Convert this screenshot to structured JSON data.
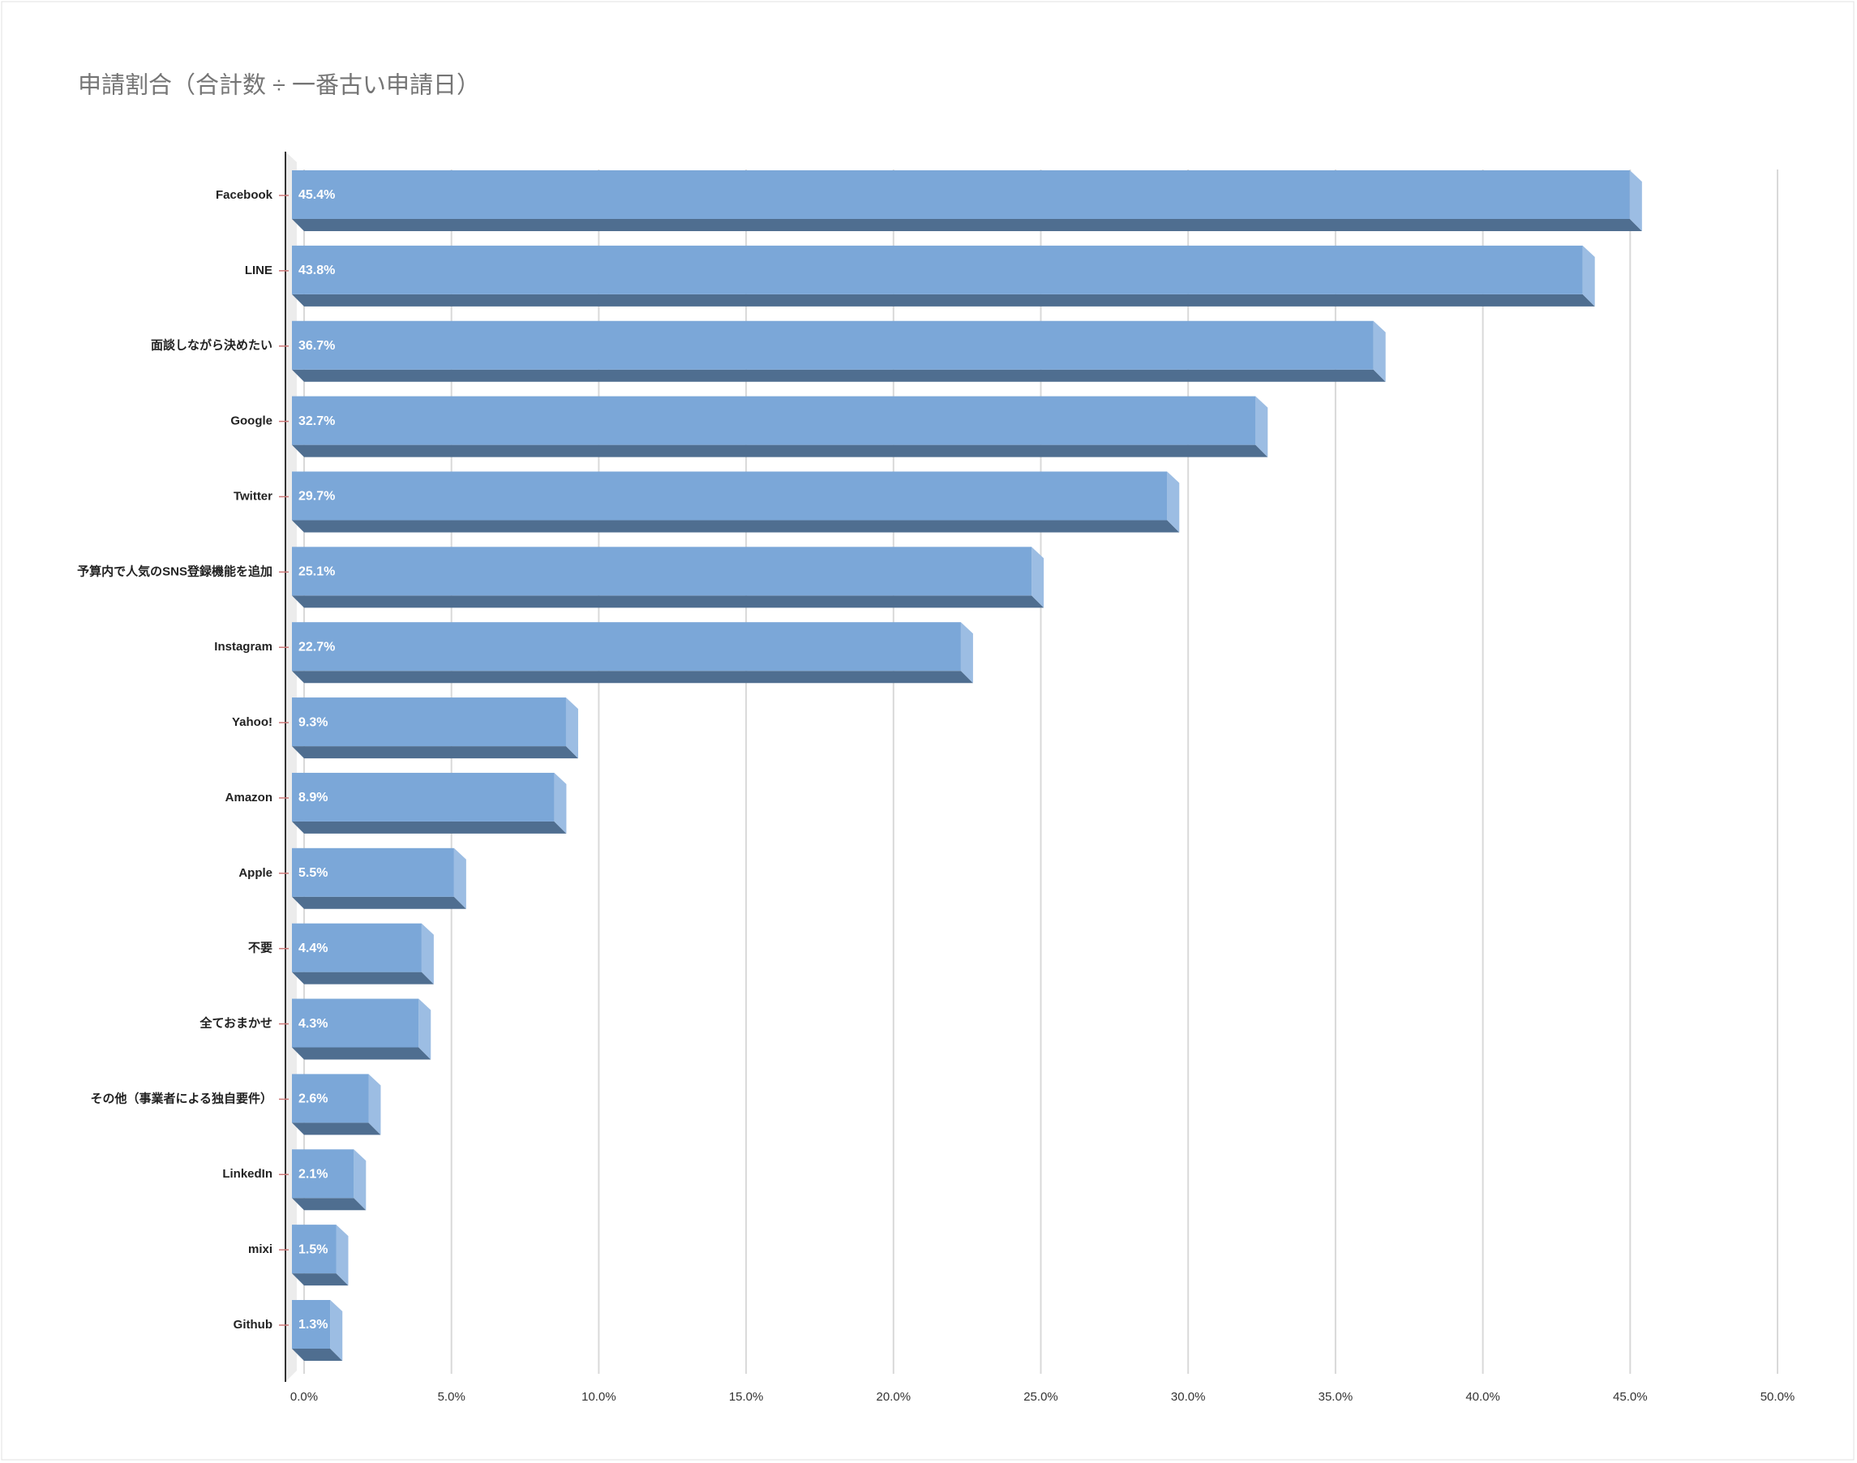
{
  "chart_data": {
    "type": "bar3d",
    "orientation": "horizontal",
    "title": "申請割合（合計数 ÷ 一番古い申請日）",
    "categories": [
      "Facebook",
      "LINE",
      "面談しながら決めたい",
      "Google",
      "Twitter",
      "予算内で人気のSNS登録機能を追加",
      "Instagram",
      "Yahoo!",
      "Amazon",
      "Apple",
      "不要",
      "全ておまかせ",
      "その他（事業者による独自要件）",
      "LinkedIn",
      "mixi",
      "Github"
    ],
    "values": [
      45.4,
      43.8,
      36.7,
      32.7,
      29.7,
      25.1,
      22.7,
      9.3,
      8.9,
      5.5,
      4.4,
      4.3,
      2.6,
      2.1,
      1.5,
      1.3
    ],
    "value_labels": [
      "45.4%",
      "43.8%",
      "36.7%",
      "32.7%",
      "29.7%",
      "25.1%",
      "22.7%",
      "9.3%",
      "8.9%",
      "5.5%",
      "4.4%",
      "4.3%",
      "2.6%",
      "2.1%",
      "1.5%",
      "1.3%"
    ],
    "color": "#7ba7d8",
    "xlim": [
      0,
      50
    ],
    "xticks": [
      {
        "value": 0,
        "label": "0.0%"
      },
      {
        "value": 5,
        "label": "5.0%"
      },
      {
        "value": 10,
        "label": "10.0%"
      },
      {
        "value": 15,
        "label": "15.0%"
      },
      {
        "value": 20,
        "label": "20.0%"
      },
      {
        "value": 25,
        "label": "25.0%"
      },
      {
        "value": 30,
        "label": "30.0%"
      },
      {
        "value": 35,
        "label": "35.0%"
      },
      {
        "value": 40,
        "label": "40.0%"
      },
      {
        "value": 45,
        "label": "45.0%"
      },
      {
        "value": 50,
        "label": "50.0%"
      }
    ],
    "grid": true
  }
}
